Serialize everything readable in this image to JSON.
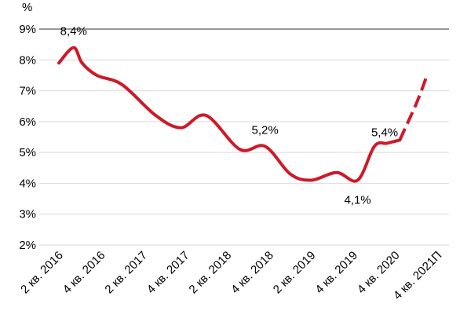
{
  "chart_data": {
    "type": "line",
    "unit_label": "%",
    "y_ticks": [
      "2%",
      "3%",
      "4%",
      "5%",
      "6%",
      "7%",
      "8%",
      "9%"
    ],
    "ylim": [
      2,
      9
    ],
    "categories": [
      "2 кв. 2016",
      "4 кв. 2016",
      "2 кв. 2017",
      "4 кв. 2017",
      "2 кв. 2018",
      "4 кв. 2018",
      "2 кв. 2019",
      "4 кв. 2019",
      "4 кв. 2020",
      "4 кв. 2021П"
    ],
    "series": [
      {
        "color": "#cc1a2a",
        "x": [
          0,
          0.35,
          0.55,
          0.9,
          1.5,
          2.3,
          2.9,
          3.5,
          4.3,
          4.9,
          5.5,
          6.0,
          6.6,
          7.1,
          7.5,
          7.8,
          8.1,
          8.5,
          8.75
        ],
        "y": [
          7.9,
          8.4,
          7.9,
          7.5,
          7.2,
          6.2,
          5.8,
          6.2,
          5.1,
          5.2,
          4.3,
          4.1,
          4.35,
          4.1,
          5.2,
          5.3,
          5.4,
          6.6,
          7.5
        ],
        "solid_count": 17
      }
    ],
    "data_labels": [
      {
        "text": "8,4%",
        "x": 0.35,
        "y": 8.4,
        "position": "above"
      },
      {
        "text": "5,2%",
        "x": 4.9,
        "y": 5.2,
        "position": "above"
      },
      {
        "text": "4,1%",
        "x": 7.1,
        "y": 4.1,
        "position": "below"
      },
      {
        "text": "5,4%",
        "x": 8.1,
        "y": 5.4,
        "position": "left"
      }
    ],
    "grid": true
  }
}
